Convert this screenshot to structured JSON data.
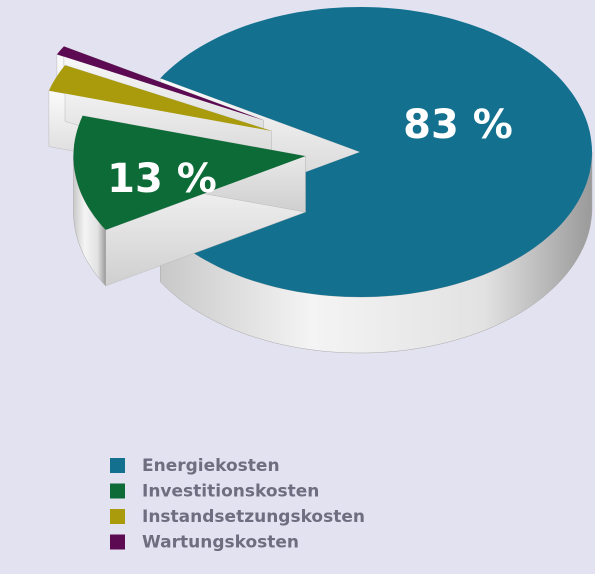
{
  "chart_data": {
    "type": "pie",
    "categories": [
      "Energiekosten",
      "Investitionskosten",
      "Instandsetzungskosten",
      "Wartungskosten"
    ],
    "values": [
      83,
      13,
      3,
      1
    ],
    "value_labels": [
      "83 %",
      "13 %",
      null,
      null
    ],
    "colors": [
      "#13708f",
      "#0d6b37",
      "#a99b0c",
      "#5c0b52"
    ]
  }
}
